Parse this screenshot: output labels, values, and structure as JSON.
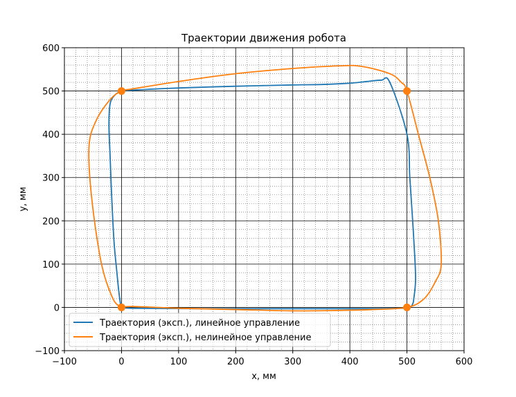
{
  "chart_data": {
    "type": "line",
    "title": "Траектории движения робота",
    "xlabel": "x, мм",
    "ylabel": "y, мм",
    "xlim": [
      -100,
      600
    ],
    "ylim": [
      -100,
      600
    ],
    "xticks": [
      -100,
      0,
      100,
      200,
      300,
      400,
      500,
      600
    ],
    "yticks": [
      -100,
      0,
      100,
      200,
      300,
      400,
      500,
      600
    ],
    "xtick_labels": [
      "−100",
      "0",
      "100",
      "200",
      "300",
      "400",
      "500",
      "600"
    ],
    "ytick_labels": [
      "−100",
      "0",
      "100",
      "200",
      "300",
      "400",
      "500",
      "600"
    ],
    "grid": {
      "major": true,
      "minor": true
    },
    "legend_position": "lower-left",
    "series": [
      {
        "name": "Траектория (эксп.), линейное управление",
        "color": "#1f77b4",
        "x": [
          0,
          20,
          150,
          300,
          440,
          490,
          505,
          510,
          512,
          515,
          514,
          510,
          505,
          500,
          470,
          455,
          430,
          400,
          350,
          300,
          200,
          100,
          20,
          0,
          -12,
          -20,
          -22,
          -20,
          -17,
          -13,
          -8,
          -5,
          -2,
          0
        ],
        "y": [
          0,
          -2,
          -3,
          -3,
          -3,
          -2,
          0,
          8,
          20,
          60,
          110,
          200,
          300,
          400,
          520,
          525,
          522,
          518,
          515,
          514,
          511,
          507,
          502,
          500,
          490,
          470,
          420,
          350,
          250,
          150,
          80,
          40,
          10,
          0
        ]
      },
      {
        "name": "Траектория (эксп.), нелинейное управление",
        "color": "#ff7f0e",
        "x": [
          0,
          20,
          100,
          200,
          300,
          380,
          440,
          500,
          530,
          550,
          560,
          555,
          540,
          520,
          500,
          490,
          470,
          420,
          380,
          300,
          200,
          100,
          20,
          0,
          -20,
          -45,
          -57,
          -52,
          -35,
          -15,
          0
        ],
        "y": [
          0,
          2,
          -2,
          -5,
          -8,
          -7,
          -5,
          0,
          20,
          60,
          100,
          200,
          300,
          400,
          500,
          520,
          540,
          557,
          558,
          552,
          540,
          522,
          505,
          500,
          480,
          430,
          370,
          250,
          100,
          20,
          0
        ]
      }
    ],
    "markers": {
      "color": "#ff7f0e",
      "points": [
        {
          "x": 0,
          "y": 500
        },
        {
          "x": 500,
          "y": 500
        },
        {
          "x": 500,
          "y": 0
        },
        {
          "x": 0,
          "y": 0
        }
      ]
    }
  }
}
